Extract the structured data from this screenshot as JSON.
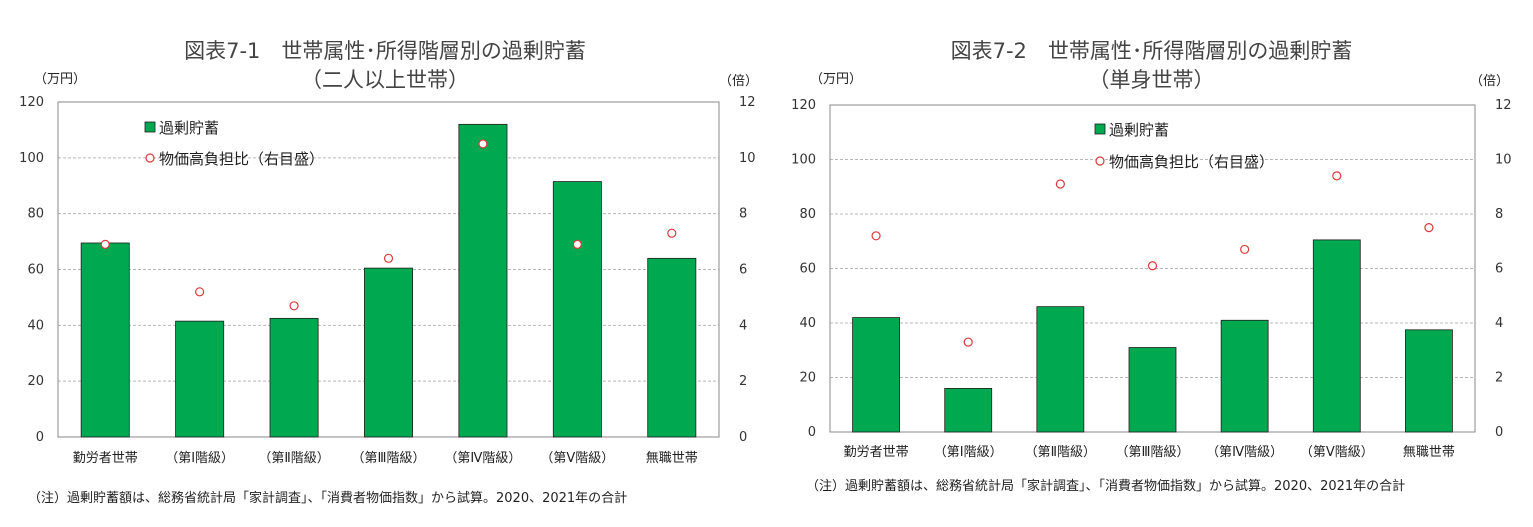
{
  "colors": {
    "bar": "#00a84f",
    "marker": "#d93a3a",
    "grid": "#b8b8b8",
    "frame": "#888888"
  },
  "charts": [
    {
      "title_line1": "図表7-1　世帯属性･所得階層別の過剰貯蓄",
      "title_line2": "（二人以上世帯）",
      "left_unit": "（万円）",
      "right_unit": "（倍）",
      "note": "（注）過剰貯蓄額は、総務省統計局「家計調査」、「消費者物価指数」から試算。2020、2021年の合計"
    },
    {
      "title_line1": "図表7-2　世帯属性･所得階層別の過剰貯蓄",
      "title_line2": "（単身世帯）",
      "left_unit": "（万円）",
      "right_unit": "（倍）",
      "note": "（注）過剰貯蓄額は、総務省統計局「家計調査」、「消費者物価指数」から試算。2020、2021年の合計"
    }
  ],
  "chart_data": [
    {
      "type": "bar",
      "categories": [
        "勤労者世帯",
        "（第Ⅰ階級）",
        "（第Ⅱ階級）",
        "（第Ⅲ階級）",
        "（第Ⅳ階級）",
        "（第Ⅴ階級）",
        "無職世帯"
      ],
      "series": [
        {
          "name": "過剰貯蓄",
          "type": "bar",
          "axis": "left",
          "values": [
            69.5,
            41.5,
            42.5,
            60.5,
            112,
            91.5,
            64
          ]
        },
        {
          "name": "物価高負担比（右目盛）",
          "type": "scatter",
          "axis": "right",
          "values": [
            6.9,
            5.2,
            4.7,
            6.4,
            10.5,
            6.9,
            7.3
          ]
        }
      ],
      "ylim": [
        0,
        120
      ],
      "yticks": [
        "0",
        "20",
        "40",
        "60",
        "80",
        "100",
        "120"
      ],
      "y2lim": [
        0,
        12
      ],
      "y2ticks": [
        "0",
        "2",
        "4",
        "6",
        "8",
        "10",
        "12"
      ],
      "grid": true,
      "legend": "top-left"
    },
    {
      "type": "bar",
      "categories": [
        "勤労者世帯",
        "（第Ⅰ階級）",
        "（第Ⅱ階級）",
        "（第Ⅲ階級）",
        "（第Ⅳ階級）",
        "（第Ⅴ階級）",
        "無職世帯"
      ],
      "series": [
        {
          "name": "過剰貯蓄",
          "type": "bar",
          "axis": "left",
          "values": [
            42,
            16,
            46,
            31,
            41,
            70.5,
            37.5
          ]
        },
        {
          "name": "物価高負担比（右目盛）",
          "type": "scatter",
          "axis": "right",
          "values": [
            7.2,
            3.3,
            9.1,
            6.1,
            6.7,
            9.4,
            7.5
          ]
        }
      ],
      "ylim": [
        0,
        120
      ],
      "yticks": [
        "0",
        "20",
        "40",
        "60",
        "80",
        "100",
        "120"
      ],
      "y2lim": [
        0,
        12
      ],
      "y2ticks": [
        "0",
        "2",
        "4",
        "6",
        "8",
        "10",
        "12"
      ],
      "grid": true,
      "legend": "top-center"
    }
  ]
}
